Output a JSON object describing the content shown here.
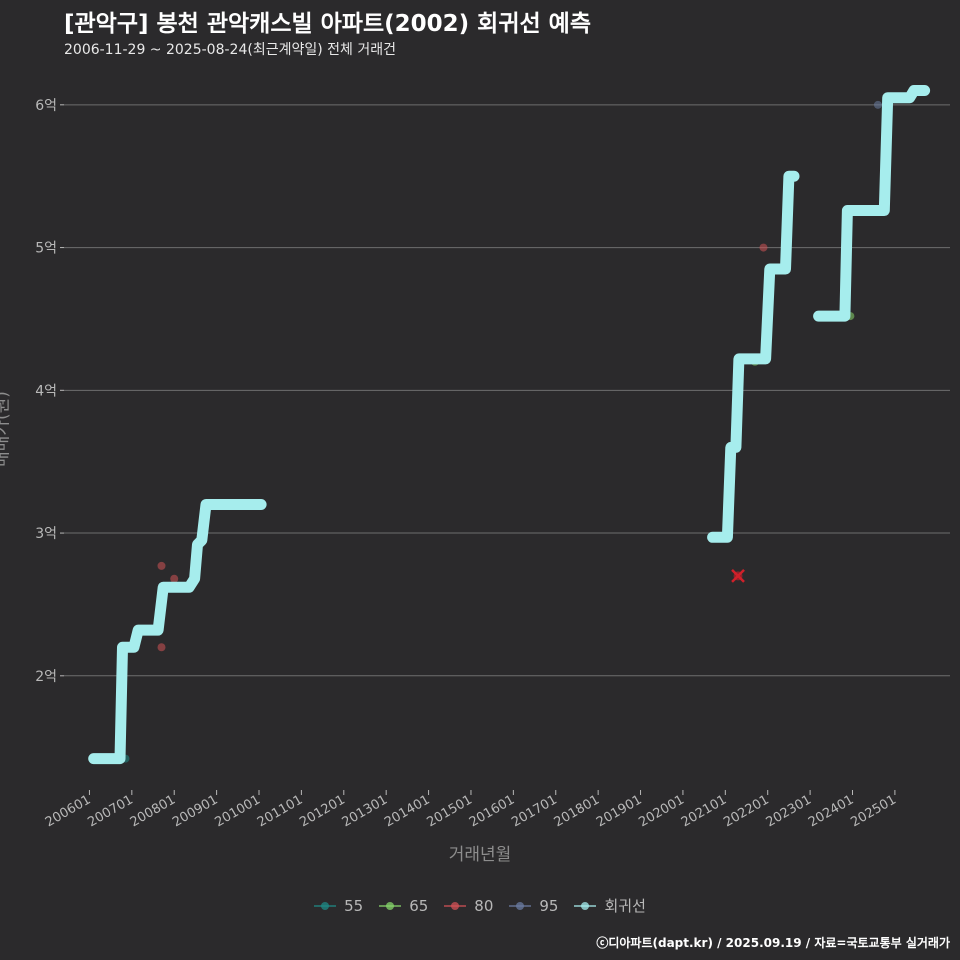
{
  "chart_data": {
    "type": "line",
    "title": "[관악구] 봉천 관악캐스빌 아파트(2002) 회귀선 예측",
    "subtitle": "2006-11-29 ~ 2025-08-24(최근계약일) 전체 거래건",
    "xlabel": "거래년월",
    "ylabel": "매매가(원)",
    "ylim": [
      1.2,
      6.3
    ],
    "xlim": [
      2005.4,
      2026.3
    ],
    "y_ticks": [
      {
        "value": 2,
        "label": "2억"
      },
      {
        "value": 3,
        "label": "3억"
      },
      {
        "value": 4,
        "label": "4억"
      },
      {
        "value": 5,
        "label": "5억"
      },
      {
        "value": 6,
        "label": "6억"
      }
    ],
    "x_ticks": [
      {
        "value": 2006,
        "label": "200601"
      },
      {
        "value": 2007,
        "label": "200701"
      },
      {
        "value": 2008,
        "label": "200801"
      },
      {
        "value": 2009,
        "label": "200901"
      },
      {
        "value": 2010,
        "label": "201001"
      },
      {
        "value": 2011,
        "label": "201101"
      },
      {
        "value": 2012,
        "label": "201201"
      },
      {
        "value": 2013,
        "label": "201301"
      },
      {
        "value": 2014,
        "label": "201401"
      },
      {
        "value": 2015,
        "label": "201501"
      },
      {
        "value": 2016,
        "label": "201601"
      },
      {
        "value": 2017,
        "label": "201701"
      },
      {
        "value": 2018,
        "label": "201801"
      },
      {
        "value": 2019,
        "label": "201901"
      },
      {
        "value": 2020,
        "label": "202001"
      },
      {
        "value": 2021,
        "label": "202101"
      },
      {
        "value": 2022,
        "label": "202201"
      },
      {
        "value": 2023,
        "label": "202301"
      },
      {
        "value": 2024,
        "label": "202401"
      },
      {
        "value": 2025,
        "label": "202501"
      }
    ],
    "series": [
      {
        "name": "55",
        "color": "#1f8a86",
        "points": [
          {
            "x": 2006.85,
            "y": 1.42
          }
        ]
      },
      {
        "name": "65",
        "color": "#86d46a",
        "points": [
          {
            "x": 2021.7,
            "y": 4.2
          },
          {
            "x": 2023.95,
            "y": 4.52
          }
        ]
      },
      {
        "name": "80",
        "color": "#d05256",
        "points": [
          {
            "x": 2007.7,
            "y": 2.77
          },
          {
            "x": 2007.7,
            "y": 2.2
          },
          {
            "x": 2008.0,
            "y": 2.68
          },
          {
            "x": 2021.9,
            "y": 5.0
          }
        ]
      },
      {
        "name": "95",
        "color": "#6a7ba0",
        "points": [
          {
            "x": 2024.6,
            "y": 6.0
          }
        ]
      }
    ],
    "cancelled_marks": [
      {
        "x": 2021.3,
        "y": 2.7
      }
    ],
    "regression": {
      "name": "회귀선",
      "color": "#a6eded",
      "segments": [
        [
          {
            "x": 2006.1,
            "y": 1.42
          },
          {
            "x": 2006.72,
            "y": 1.42
          },
          {
            "x": 2006.78,
            "y": 2.2
          },
          {
            "x": 2007.05,
            "y": 2.2
          },
          {
            "x": 2007.15,
            "y": 2.32
          },
          {
            "x": 2007.62,
            "y": 2.32
          },
          {
            "x": 2007.74,
            "y": 2.62
          },
          {
            "x": 2008.35,
            "y": 2.62
          },
          {
            "x": 2008.48,
            "y": 2.68
          },
          {
            "x": 2008.55,
            "y": 2.92
          },
          {
            "x": 2008.65,
            "y": 2.95
          },
          {
            "x": 2008.75,
            "y": 3.2
          },
          {
            "x": 2010.05,
            "y": 3.2
          }
        ],
        [
          {
            "x": 2020.7,
            "y": 2.97
          },
          {
            "x": 2021.05,
            "y": 2.97
          },
          {
            "x": 2021.13,
            "y": 3.6
          },
          {
            "x": 2021.25,
            "y": 3.6
          },
          {
            "x": 2021.32,
            "y": 4.22
          },
          {
            "x": 2021.95,
            "y": 4.22
          },
          {
            "x": 2022.05,
            "y": 4.85
          },
          {
            "x": 2022.42,
            "y": 4.85
          },
          {
            "x": 2022.5,
            "y": 5.5
          },
          {
            "x": 2022.62,
            "y": 5.5
          }
        ],
        [
          {
            "x": 2023.2,
            "y": 4.52
          },
          {
            "x": 2023.82,
            "y": 4.52
          },
          {
            "x": 2023.88,
            "y": 5.26
          },
          {
            "x": 2024.75,
            "y": 5.26
          },
          {
            "x": 2024.83,
            "y": 6.05
          },
          {
            "x": 2025.35,
            "y": 6.05
          },
          {
            "x": 2025.45,
            "y": 6.1
          },
          {
            "x": 2025.7,
            "y": 6.1
          }
        ]
      ]
    },
    "legend": [
      {
        "label": "55",
        "color": "#1f8a86"
      },
      {
        "label": "65",
        "color": "#86d46a"
      },
      {
        "label": "80",
        "color": "#d05256"
      },
      {
        "label": "95",
        "color": "#6a7ba0"
      },
      {
        "label": "회귀선",
        "color": "#a6eded"
      }
    ],
    "legend_position": "bottom"
  },
  "footer": "ⓒ디아파트(dapt.kr) / 2025.09.19 / 자료=국토교통부 실거래가",
  "colors": {
    "background": "#2b2a2c",
    "grid": "#6e6e6e",
    "axis_text": "#b8b8b8",
    "cancelled_mark": "#d0202a"
  }
}
